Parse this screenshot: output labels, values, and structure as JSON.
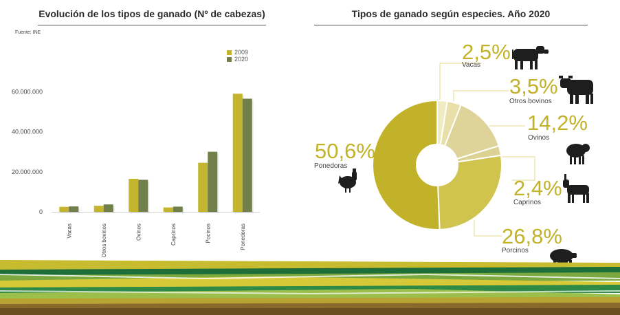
{
  "bar_chart": {
    "title": "Evolución de los tipos de ganado (Nº de cabezas)",
    "source": "Fuente: INE"
  },
  "pie_chart": {
    "title": "Tipos de ganado según especies. Año 2020"
  },
  "colors": {
    "s2009": "#c4b52e",
    "s2020": "#71804a",
    "accent": "#c2b22a",
    "slices": [
      "#f1ebc2",
      "#e8e0a8",
      "#ded49a",
      "#dcd293",
      "#d0c44e",
      "#c2b22a"
    ]
  },
  "chart_data": [
    {
      "type": "bar",
      "title": "Evolución de los tipos de ganado (Nº de cabezas)",
      "categories": [
        "Vacas",
        "Otros bovinos",
        "Ovinos",
        "Caprinos",
        "Pocinos",
        "Ponedoras"
      ],
      "series": [
        {
          "name": "2009",
          "values": [
            2500000,
            3000000,
            16500000,
            2200000,
            24500000,
            59000000
          ]
        },
        {
          "name": "2020",
          "values": [
            2700000,
            3700000,
            16000000,
            2600000,
            30000000,
            56500000
          ]
        }
      ],
      "yticks": [
        "0",
        "20.000.000",
        "40.000.000",
        "60.000.000"
      ],
      "ytick_values": [
        0,
        20000000,
        40000000,
        60000000
      ],
      "ylim": [
        0,
        68000000
      ],
      "legend": "top-right",
      "grid": false
    },
    {
      "type": "pie",
      "title": "Tipos de ganado según especies. Año 2020",
      "labels": [
        "Vacas",
        "Otros bovinos",
        "Ovinos",
        "Caprinos",
        "Porcinos",
        "Ponedoras"
      ],
      "values": [
        2.5,
        3.5,
        14.2,
        2.4,
        26.8,
        50.6
      ],
      "value_labels": [
        "2,5%",
        "3,5%",
        "14,2%",
        "2,4%",
        "26,8%",
        "50,6%"
      ],
      "donut": true
    }
  ],
  "pie_labels": [
    {
      "pct": "2,5%",
      "label": "Vacas",
      "icon": "cow-icon"
    },
    {
      "pct": "3,5%",
      "label": "Otros bovinos",
      "icon": "bull-icon"
    },
    {
      "pct": "14,2%",
      "label": "Ovinos",
      "icon": "sheep-icon"
    },
    {
      "pct": "2,4%",
      "label": "Caprinos",
      "icon": "goat-icon"
    },
    {
      "pct": "26,8%",
      "label": "Porcinos",
      "icon": "pig-icon"
    },
    {
      "pct": "50,6%",
      "label": "Ponedoras",
      "icon": "rooster-icon"
    }
  ],
  "decoration": {
    "name": "field-stripes-decoration"
  }
}
